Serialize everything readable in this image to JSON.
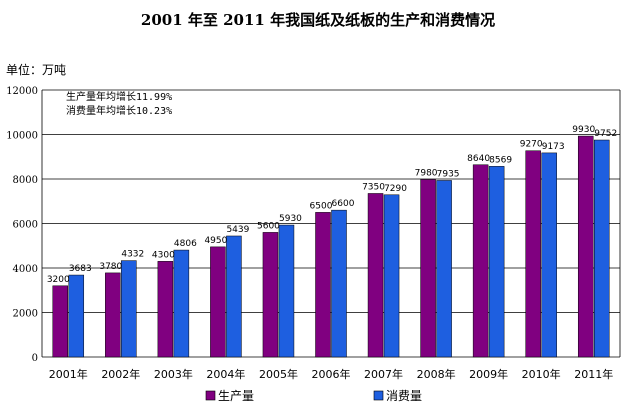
{
  "chart_data": {
    "type": "bar",
    "title": "2001 年至 2011 年我国纸及纸板的生产和消费情况",
    "unit_label": "单位：万吨",
    "categories": [
      "2001年",
      "2002年",
      "2003年",
      "2004年",
      "2005年",
      "2006年",
      "2007年",
      "2008年",
      "2009年",
      "2010年",
      "2011年"
    ],
    "series": [
      {
        "name": "生产量",
        "color": "#800080",
        "values": [
          3200,
          3780,
          4300,
          4950,
          5600,
          6500,
          7350,
          7980,
          8640,
          9270,
          9930
        ]
      },
      {
        "name": "消费量",
        "color": "#1e5fe0",
        "values": [
          3683,
          4332,
          4806,
          5439,
          5930,
          6600,
          7290,
          7935,
          8569,
          9173,
          9752
        ]
      }
    ],
    "data_labels": [
      [
        "3200",
        "3780",
        "4300",
        "4950",
        "5600",
        "6500",
        "7350",
        "7980",
        "8640",
        "9270",
        "9930"
      ],
      [
        "3683",
        "4332",
        "4806",
        "5439",
        "5930",
        "6600",
        "7290",
        "7935",
        "8569",
        "9173",
        "9752"
      ]
    ],
    "ylim": [
      0,
      12000
    ],
    "yticks": [
      0,
      2000,
      4000,
      6000,
      8000,
      10000,
      12000
    ],
    "grid": true,
    "legend_position": "bottom",
    "annotations": [
      "生产量年均增长11.99%",
      "消费量年均增长10.23%"
    ]
  }
}
